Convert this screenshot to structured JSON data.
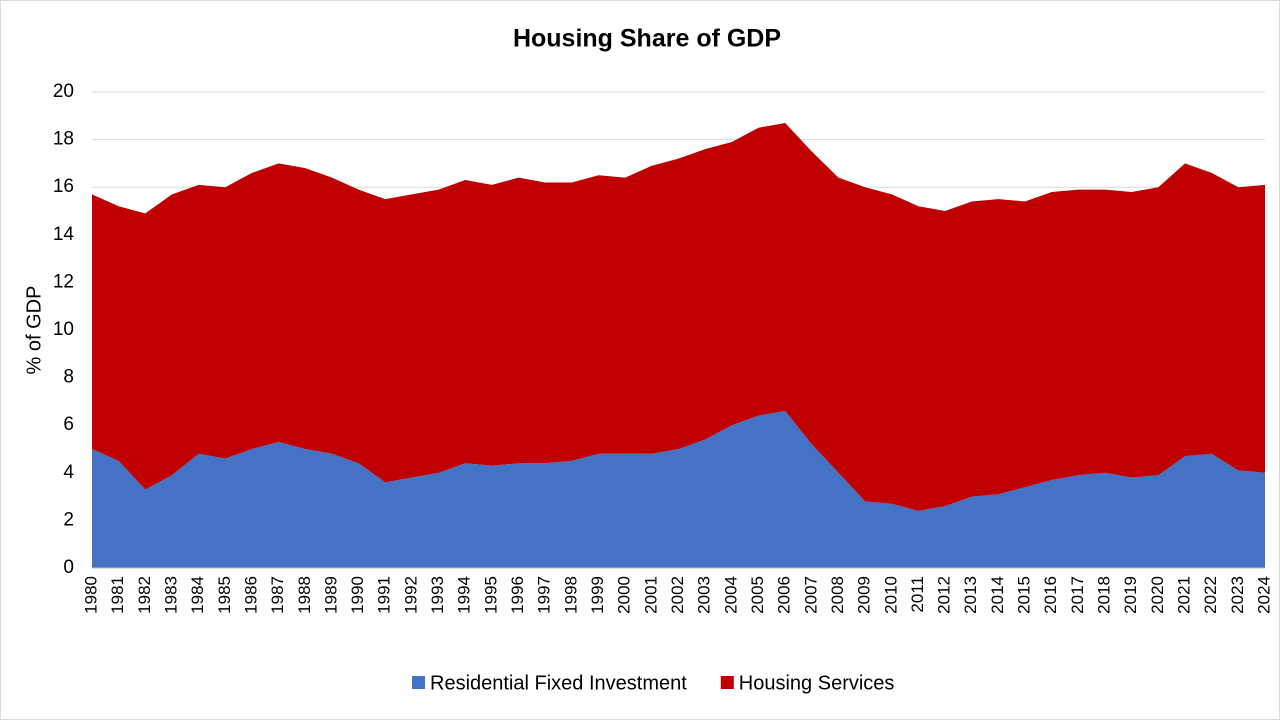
{
  "chart_data": {
    "type": "stacked-area",
    "title": "Housing Share of GDP",
    "y_label": "% of GDP",
    "categories": [
      "1980",
      "1981",
      "1982",
      "1983",
      "1984",
      "1985",
      "1986",
      "1987",
      "1988",
      "1989",
      "1990",
      "1991",
      "1992",
      "1993",
      "1994",
      "1995",
      "1996",
      "1997",
      "1998",
      "1999",
      "2000",
      "2001",
      "2002",
      "2003",
      "2004",
      "2005",
      "2006",
      "2007",
      "2008",
      "2009",
      "2010",
      "2011",
      "2012",
      "2013",
      "2014",
      "2015",
      "2016",
      "2017",
      "2018",
      "2019",
      "2020",
      "2021",
      "2022",
      "2023",
      "2024"
    ],
    "series": [
      {
        "name": "Residential Fixed Investment",
        "color": "#4472c4",
        "values": [
          5.0,
          4.5,
          3.3,
          3.9,
          4.8,
          4.6,
          5.0,
          5.3,
          5.0,
          4.8,
          4.4,
          3.6,
          3.8,
          4.0,
          4.4,
          4.3,
          4.4,
          4.4,
          4.5,
          4.8,
          4.8,
          4.8,
          5.0,
          5.4,
          6.0,
          6.4,
          6.6,
          5.2,
          4.0,
          2.8,
          2.7,
          2.4,
          2.6,
          3.0,
          3.1,
          3.4,
          3.7,
          3.9,
          4.0,
          3.8,
          3.9,
          4.7,
          4.8,
          4.1,
          4.0
        ]
      },
      {
        "name": "Housing Services",
        "color": "#c00000",
        "values": [
          10.7,
          10.7,
          11.6,
          11.8,
          11.3,
          11.4,
          11.6,
          11.7,
          11.8,
          11.6,
          11.5,
          11.9,
          11.9,
          11.9,
          11.9,
          11.8,
          12.0,
          11.8,
          11.7,
          11.7,
          11.6,
          12.1,
          12.2,
          12.2,
          11.9,
          12.1,
          12.1,
          12.3,
          12.4,
          13.2,
          13.0,
          12.8,
          12.4,
          12.4,
          12.4,
          12.0,
          12.1,
          12.0,
          11.9,
          12.0,
          12.1,
          12.3,
          11.8,
          11.9,
          12.1
        ]
      }
    ],
    "ylim": [
      0,
      20
    ],
    "yticks": [
      0,
      2,
      4,
      6,
      8,
      10,
      12,
      14,
      16,
      18,
      20
    ],
    "grid": true,
    "legend": "bottom"
  }
}
